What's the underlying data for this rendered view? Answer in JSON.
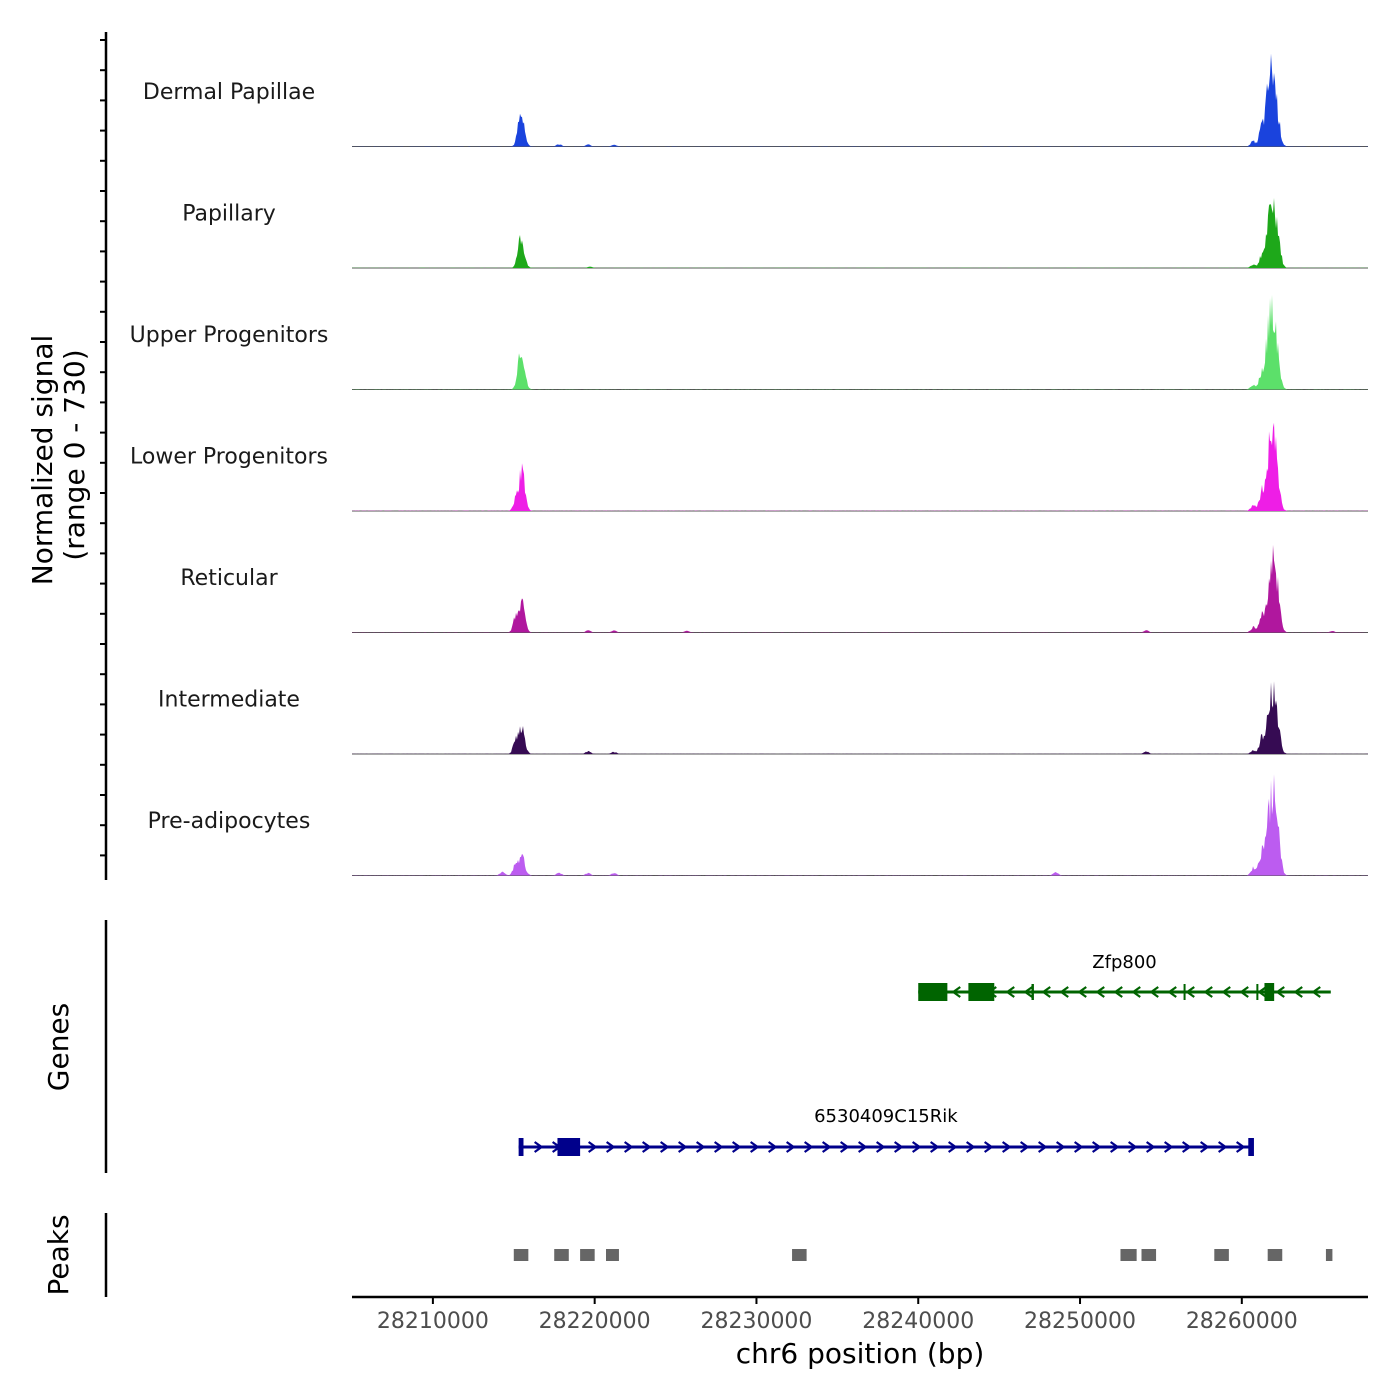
{
  "chart_data": {
    "type": "area",
    "title": "",
    "xlabel": "chr6 position (bp)",
    "ylabel": "Normalized signal",
    "ylabel_range": "(range 0 - 730)",
    "xlim": [
      28205000,
      28267800
    ],
    "ylim": [
      0,
      730
    ],
    "x_ticks": [
      28210000,
      28220000,
      28230000,
      28240000,
      28250000,
      28260000
    ],
    "x_tick_labels": [
      "28210000",
      "28220000",
      "28230000",
      "28240000",
      "28250000",
      "28260000"
    ],
    "series": [
      {
        "name": "Dermal Papillae",
        "color": "#1a43dd",
        "peaks": [
          [
            28215500,
            280
          ],
          [
            28215300,
            120
          ],
          [
            28217800,
            25
          ],
          [
            28219600,
            18
          ],
          [
            28221200,
            15
          ],
          [
            28261600,
            480
          ],
          [
            28261900,
            700
          ],
          [
            28262200,
            300
          ],
          [
            28261200,
            200
          ],
          [
            28260700,
            60
          ]
        ]
      },
      {
        "name": "Papillary",
        "color": "#1ea81a",
        "peaks": [
          [
            28215500,
            290
          ],
          [
            28215300,
            110
          ],
          [
            28219700,
            12
          ],
          [
            28261600,
            330
          ],
          [
            28261900,
            560
          ],
          [
            28262200,
            380
          ],
          [
            28261200,
            130
          ],
          [
            28260700,
            40
          ]
        ]
      },
      {
        "name": "Upper Progenitors",
        "color": "#5ce06a",
        "peaks": [
          [
            28215500,
            400
          ],
          [
            28215300,
            160
          ],
          [
            28261600,
            450
          ],
          [
            28261900,
            790
          ],
          [
            28262200,
            300
          ],
          [
            28261200,
            180
          ],
          [
            28260700,
            60
          ]
        ]
      },
      {
        "name": "Lower Progenitors",
        "color": "#ee1ee6",
        "peaks": [
          [
            28215500,
            470
          ],
          [
            28215100,
            110
          ],
          [
            28261600,
            380
          ],
          [
            28261900,
            850
          ],
          [
            28262200,
            300
          ],
          [
            28261200,
            200
          ],
          [
            28260700,
            70
          ]
        ]
      },
      {
        "name": "Reticular",
        "color": "#b0179e",
        "peaks": [
          [
            28215500,
            320
          ],
          [
            28215100,
            180
          ],
          [
            28219600,
            20
          ],
          [
            28221200,
            18
          ],
          [
            28225700,
            15
          ],
          [
            28254100,
            20
          ],
          [
            28261600,
            280
          ],
          [
            28261900,
            630
          ],
          [
            28262200,
            420
          ],
          [
            28261200,
            180
          ],
          [
            28260700,
            60
          ],
          [
            28265600,
            12
          ]
        ]
      },
      {
        "name": "Intermediate",
        "color": "#360b53",
        "peaks": [
          [
            28215500,
            310
          ],
          [
            28215100,
            170
          ],
          [
            28219600,
            30
          ],
          [
            28221200,
            22
          ],
          [
            28254100,
            25
          ],
          [
            28261600,
            300
          ],
          [
            28261900,
            580
          ],
          [
            28262200,
            310
          ],
          [
            28261200,
            160
          ],
          [
            28260700,
            40
          ]
        ]
      },
      {
        "name": "Pre-adipocytes",
        "color": "#bc5cf0",
        "peaks": [
          [
            28215500,
            230
          ],
          [
            28215100,
            130
          ],
          [
            28214300,
            40
          ],
          [
            28217800,
            30
          ],
          [
            28219600,
            25
          ],
          [
            28221200,
            25
          ],
          [
            28248500,
            35
          ],
          [
            28261600,
            420
          ],
          [
            28261900,
            780
          ],
          [
            28262200,
            480
          ],
          [
            28261200,
            230
          ],
          [
            28260700,
            80
          ]
        ]
      }
    ],
    "genes": [
      {
        "name": "Zfp800",
        "color": "#006400",
        "start": 28240000,
        "end": 28265500,
        "strand": "-",
        "exons": [
          [
            28240000,
            28241800
          ],
          [
            28243100,
            28244700
          ],
          [
            28247000,
            28247150
          ],
          [
            28256400,
            28256500
          ],
          [
            28260900,
            28261000
          ],
          [
            28261400,
            28262000
          ]
        ]
      },
      {
        "name": "6530409C15Rik",
        "color": "#00008b",
        "start": 28215300,
        "end": 28260700,
        "strand": "+",
        "exons": [
          [
            28215300,
            28215600
          ],
          [
            28217700,
            28219100
          ],
          [
            28260400,
            28260750
          ]
        ]
      }
    ],
    "peaks_regions": [
      [
        28215000,
        28215900
      ],
      [
        28217500,
        28218400
      ],
      [
        28219100,
        28220000
      ],
      [
        28220700,
        28221500
      ],
      [
        28232200,
        28233100
      ],
      [
        28252500,
        28253500
      ],
      [
        28253800,
        28254700
      ],
      [
        28258300,
        28259200
      ],
      [
        28261600,
        28262500
      ],
      [
        28265200,
        28265600
      ]
    ],
    "panel_labels": {
      "genes": "Genes",
      "peaks": "Peaks"
    }
  }
}
